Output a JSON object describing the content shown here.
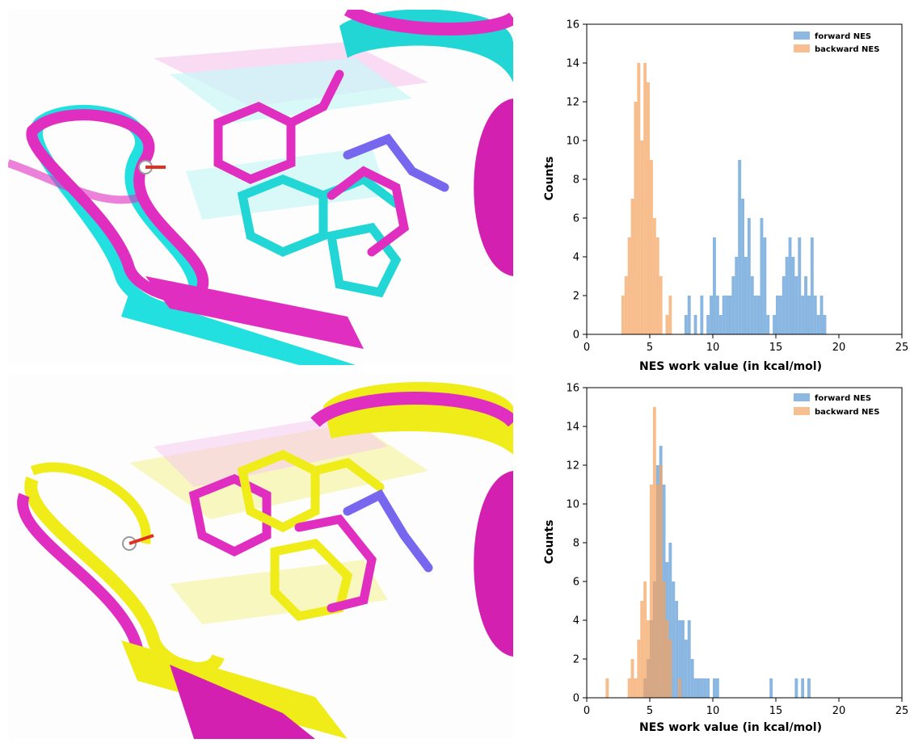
{
  "colors": {
    "forward": "#5b9bd5",
    "backward": "#f4a460",
    "magenta": "#e02fc0",
    "cyan": "#22e0e0",
    "yellow": "#f0ec1a"
  },
  "molecule_panels": [
    {
      "compare_color": "cyan"
    },
    {
      "compare_color": "yellow"
    }
  ],
  "chart_data": [
    {
      "type": "histogram",
      "xlabel": "NES work value (in kcal/mol)",
      "ylabel": "Counts",
      "xlim": [
        0,
        25
      ],
      "ylim": [
        0,
        16
      ],
      "xticks": [
        0,
        5,
        10,
        15,
        20,
        25
      ],
      "yticks": [
        0,
        2,
        4,
        6,
        8,
        10,
        12,
        14,
        16
      ],
      "grid": false,
      "legend_position": "top-right",
      "bin_width": 0.25,
      "series": [
        {
          "name": "forward NES",
          "color": "#5b9bd5",
          "bins": [
            [
              7.75,
              1
            ],
            [
              8.0,
              2
            ],
            [
              8.5,
              1
            ],
            [
              9.0,
              2
            ],
            [
              9.5,
              1
            ],
            [
              9.75,
              2
            ],
            [
              10.0,
              5
            ],
            [
              10.25,
              2
            ],
            [
              10.5,
              1
            ],
            [
              10.75,
              2
            ],
            [
              11.0,
              2
            ],
            [
              11.25,
              2
            ],
            [
              11.5,
              3
            ],
            [
              11.75,
              4
            ],
            [
              12.0,
              9
            ],
            [
              12.25,
              7
            ],
            [
              12.5,
              4
            ],
            [
              12.75,
              6
            ],
            [
              13.0,
              3
            ],
            [
              13.25,
              2
            ],
            [
              13.5,
              2
            ],
            [
              13.75,
              6
            ],
            [
              14.0,
              5
            ],
            [
              14.25,
              1
            ],
            [
              14.5,
              0
            ],
            [
              14.75,
              1
            ],
            [
              15.0,
              2
            ],
            [
              15.25,
              2
            ],
            [
              15.5,
              3
            ],
            [
              15.75,
              4
            ],
            [
              16.0,
              5
            ],
            [
              16.25,
              4
            ],
            [
              16.5,
              3
            ],
            [
              16.75,
              5
            ],
            [
              17.0,
              2
            ],
            [
              17.25,
              3
            ],
            [
              17.5,
              2
            ],
            [
              17.75,
              5
            ],
            [
              18.0,
              2
            ],
            [
              18.25,
              1
            ],
            [
              18.5,
              2
            ],
            [
              18.75,
              1
            ]
          ]
        },
        {
          "name": "backward NES",
          "color": "#f4a460",
          "bins": [
            [
              2.75,
              2
            ],
            [
              3.0,
              3
            ],
            [
              3.25,
              5
            ],
            [
              3.5,
              7
            ],
            [
              3.75,
              12
            ],
            [
              4.0,
              14
            ],
            [
              4.25,
              10
            ],
            [
              4.5,
              14
            ],
            [
              4.75,
              13
            ],
            [
              5.0,
              9
            ],
            [
              5.25,
              6
            ],
            [
              5.5,
              5
            ],
            [
              5.75,
              3
            ],
            [
              6.25,
              1
            ],
            [
              6.5,
              2
            ]
          ]
        }
      ]
    },
    {
      "type": "histogram",
      "xlabel": "NES work value (in kcal/mol)",
      "ylabel": "Counts",
      "xlim": [
        0,
        25
      ],
      "ylim": [
        0,
        16
      ],
      "xticks": [
        0,
        5,
        10,
        15,
        20,
        25
      ],
      "yticks": [
        0,
        2,
        4,
        6,
        8,
        10,
        12,
        14,
        16
      ],
      "grid": false,
      "legend_position": "top-right",
      "bin_width": 0.25,
      "series": [
        {
          "name": "forward NES",
          "color": "#5b9bd5",
          "bins": [
            [
              4.5,
              1
            ],
            [
              4.75,
              2
            ],
            [
              5.0,
              4
            ],
            [
              5.25,
              6
            ],
            [
              5.5,
              12
            ],
            [
              5.75,
              13
            ],
            [
              6.0,
              11
            ],
            [
              6.25,
              7
            ],
            [
              6.5,
              8
            ],
            [
              6.75,
              6
            ],
            [
              7.0,
              5
            ],
            [
              7.25,
              4
            ],
            [
              7.5,
              4
            ],
            [
              7.75,
              3
            ],
            [
              8.0,
              4
            ],
            [
              8.25,
              2
            ],
            [
              8.5,
              1
            ],
            [
              8.75,
              1
            ],
            [
              9.0,
              1
            ],
            [
              9.25,
              1
            ],
            [
              9.5,
              1
            ],
            [
              10.0,
              1
            ],
            [
              10.25,
              1
            ],
            [
              14.5,
              1
            ],
            [
              16.5,
              1
            ],
            [
              17.0,
              1
            ],
            [
              17.5,
              1
            ]
          ]
        },
        {
          "name": "backward NES",
          "color": "#f4a460",
          "bins": [
            [
              1.5,
              1
            ],
            [
              3.25,
              1
            ],
            [
              3.5,
              2
            ],
            [
              3.75,
              1
            ],
            [
              4.0,
              3
            ],
            [
              4.25,
              5
            ],
            [
              4.5,
              6
            ],
            [
              4.75,
              4
            ],
            [
              5.0,
              11
            ],
            [
              5.25,
              15
            ],
            [
              5.5,
              11
            ],
            [
              5.75,
              12
            ],
            [
              6.0,
              6
            ],
            [
              6.25,
              4
            ],
            [
              6.5,
              3
            ],
            [
              7.25,
              1
            ]
          ]
        }
      ]
    }
  ]
}
